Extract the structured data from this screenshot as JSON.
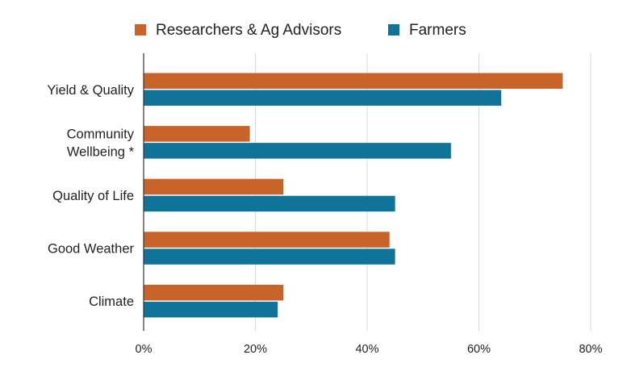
{
  "colors": {
    "series_0": "#c8642a",
    "series_1": "#10749a",
    "grid": "#d9d9d9",
    "axis": "#333333",
    "text": "#222222"
  },
  "chart_data": {
    "type": "bar",
    "orientation": "horizontal",
    "title": "",
    "xlabel": "",
    "ylabel": "",
    "categories": [
      "Yield & Quality",
      "Community Wellbeing *",
      "Quality of Life",
      "Good Weather",
      "Climate"
    ],
    "category_lines": [
      [
        "Yield & Quality"
      ],
      [
        "Community",
        "Wellbeing *"
      ],
      [
        "Quality of Life"
      ],
      [
        "Good Weather"
      ],
      [
        "Climate"
      ]
    ],
    "series": [
      {
        "name": "Researchers & Ag Advisors",
        "values": [
          75,
          19,
          25,
          44,
          25
        ]
      },
      {
        "name": "Farmers",
        "values": [
          64,
          55,
          45,
          45,
          24
        ]
      }
    ],
    "xlim": [
      0,
      80
    ],
    "xticks": [
      0,
      20,
      40,
      60,
      80
    ],
    "xtick_labels": [
      "0%",
      "20%",
      "40%",
      "60%",
      "80%"
    ],
    "grid": "vertical",
    "legend_position": "top-center"
  }
}
